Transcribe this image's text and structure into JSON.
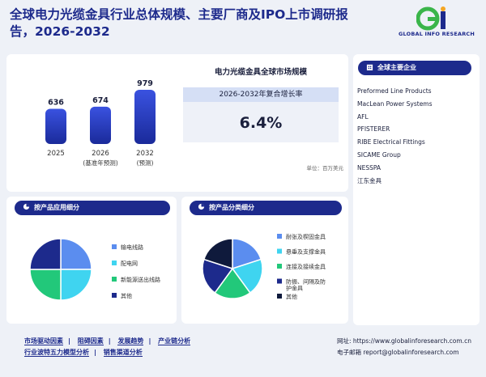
{
  "header": {
    "title": "全球电力光缆金具行业总体规模、主要厂商及IPO上市调研报告，2026-2032",
    "logo_text": "GLOBAL INFO RESEARCH"
  },
  "market": {
    "title": "电力光缆金具全球市场规模",
    "cagr_label": "2026-2032年复合增长率",
    "cagr_value": "6.4%",
    "unit": "单位：百万美元",
    "bars": [
      {
        "year": "2025",
        "note": "",
        "value": "636"
      },
      {
        "year": "2026",
        "note": "(基准年预测)",
        "value": "674"
      },
      {
        "year": "2032",
        "note": "(预测)",
        "value": "979"
      }
    ]
  },
  "chart_data": [
    {
      "type": "bar",
      "categories": [
        "2025",
        "2026",
        "2032"
      ],
      "values": [
        636,
        674,
        979
      ],
      "title": "电力光缆金具全球市场规模"
    },
    {
      "type": "pie",
      "title": "按产品应用细分",
      "labels": [
        "输电线路",
        "配电网",
        "新能源送出线路",
        "其他"
      ],
      "values": [
        25,
        25,
        25,
        25
      ],
      "colors": [
        "#5b8def",
        "#3fd4f0",
        "#22c87a",
        "#1d2a8c"
      ]
    },
    {
      "type": "pie",
      "title": "按产品分类细分",
      "labels": [
        "耐张及楔固金具",
        "悬垂及支撑金具",
        "连接及接续金具",
        "防振、间隔及防护金具",
        "其他"
      ],
      "values": [
        20,
        20,
        20,
        20,
        20
      ],
      "colors": [
        "#5b8def",
        "#3fd4f0",
        "#22c87a",
        "#1d2a8c",
        "#0f1a3c"
      ]
    }
  ],
  "companies": {
    "title": "全球主要企业",
    "items": [
      "Preformed Line Products",
      "MacLean Power Systems",
      "AFL",
      "PFISTERER",
      "RIBE Electrical Fittings",
      "SICAME Group",
      "NESSPA",
      "江东金具"
    ]
  },
  "application": {
    "title": "按产品应用细分"
  },
  "product_type": {
    "title": "按产品分类细分"
  },
  "footer": {
    "links_row1": [
      "市场驱动因素",
      "阻碍因素",
      "发展趋势",
      "产业链分析"
    ],
    "links_row2": [
      "行业波特五力模型分析",
      "销售渠道分析"
    ],
    "website": "网址: https://www.globalinforesearch.com.cn",
    "email": "电子邮箱 report@globalinforesearch.com"
  }
}
